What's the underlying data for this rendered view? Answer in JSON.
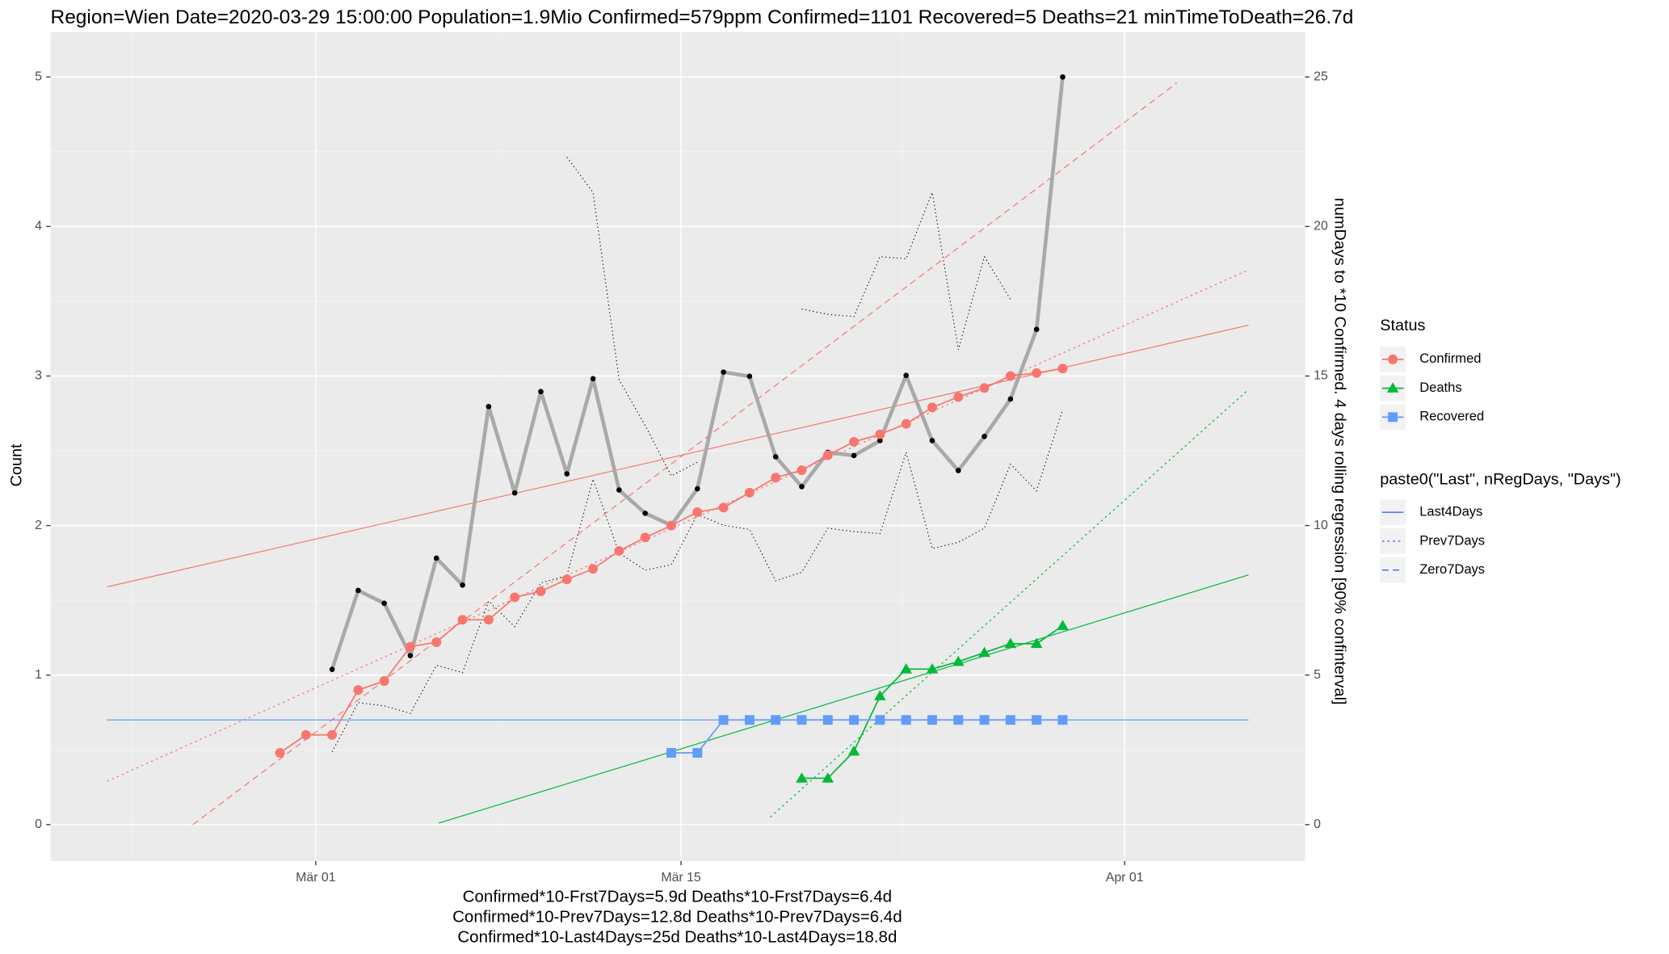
{
  "chart_data": {
    "type": "line",
    "title": "Region=Wien Date=2020-03-29 15:00:00  Population=1.9Mio Confirmed=579ppm  Confirmed=1101  Recovered=5 Deaths=21  minTimeToDeath=26.7d",
    "ylabel": "Count",
    "y2label": "numDays to *10 Confirmed. 4 days rolling regression [90% confinterval]",
    "annotations": [
      "Confirmed*10-Frst7Days=5.9d  Deaths*10-Frst7Days=6.4d",
      "Confirmed*10-Prev7Days=12.8d  Deaths*10-Prev7Days=6.4d",
      "Confirmed*10-Last4Days=25d  Deaths*10-Last4Days=18.8d"
    ],
    "grid": true,
    "xlim": [
      "2020-02-19T20:00",
      "2020-04-07T22:00"
    ],
    "xticks": [
      {
        "value": "2020-03-01",
        "label": "Mär 01"
      },
      {
        "value": "2020-03-15",
        "label": "Mär 15"
      },
      {
        "value": "2020-04-01",
        "label": "Apr 01"
      }
    ],
    "ylim": [
      -0.243,
      5.3
    ],
    "yticks": [
      0,
      1,
      2,
      3,
      4,
      5
    ],
    "y2lim": [
      -1.215,
      26.5
    ],
    "y2ticks": [
      0,
      5,
      10,
      15,
      20,
      25
    ],
    "x": [
      "2020-02-28T15:00",
      "2020-02-29T15:00",
      "2020-03-01T15:00",
      "2020-03-02T15:00",
      "2020-03-03T15:00",
      "2020-03-04T15:00",
      "2020-03-05T15:00",
      "2020-03-06T15:00",
      "2020-03-07T15:00",
      "2020-03-08T15:00",
      "2020-03-09T15:00",
      "2020-03-10T15:00",
      "2020-03-11T15:00",
      "2020-03-12T15:00",
      "2020-03-13T15:00",
      "2020-03-14T15:00",
      "2020-03-15T15:00",
      "2020-03-16T15:00",
      "2020-03-17T15:00",
      "2020-03-18T15:00",
      "2020-03-19T15:00",
      "2020-03-20T15:00",
      "2020-03-21T15:00",
      "2020-03-22T15:00",
      "2020-03-23T15:00",
      "2020-03-24T15:00",
      "2020-03-25T15:00",
      "2020-03-26T15:00",
      "2020-03-27T15:00",
      "2020-03-28T15:00",
      "2020-03-29T15:00"
    ],
    "legend_title": "Status",
    "series": [
      {
        "name": "Confirmed",
        "color": "#F8766D",
        "marker": "circle",
        "values": [
          0.48,
          0.6,
          0.6,
          0.9,
          0.96,
          1.19,
          1.22,
          1.37,
          1.37,
          1.52,
          1.56,
          1.64,
          1.71,
          1.83,
          1.92,
          2.0,
          2.09,
          2.12,
          2.22,
          2.32,
          2.37,
          2.47,
          2.56,
          2.61,
          2.68,
          2.79,
          2.86,
          2.92,
          3.0,
          3.02,
          3.05
        ]
      },
      {
        "name": "Deaths",
        "color": "#00BA38",
        "marker": "triangle",
        "values": [
          null,
          null,
          null,
          null,
          null,
          null,
          null,
          null,
          null,
          null,
          null,
          null,
          null,
          null,
          null,
          null,
          null,
          null,
          null,
          null,
          0.31,
          0.31,
          0.49,
          0.86,
          1.04,
          1.04,
          1.09,
          1.15,
          1.21,
          1.21,
          1.33
        ]
      },
      {
        "name": "Recovered",
        "color": "#619CFF",
        "marker": "square",
        "values": [
          null,
          null,
          null,
          null,
          null,
          null,
          null,
          null,
          null,
          null,
          null,
          null,
          null,
          null,
          null,
          0.48,
          0.48,
          0.7,
          0.7,
          0.7,
          0.7,
          0.7,
          0.7,
          0.7,
          0.7,
          0.7,
          0.7,
          0.7,
          0.7,
          0.7,
          0.7
        ]
      }
    ],
    "num_days": {
      "axis": "y2",
      "color": "#A9A9A9",
      "band_color": "#000000",
      "values": [
        null,
        null,
        5.19,
        7.83,
        7.4,
        5.65,
        8.91,
        8.01,
        13.98,
        11.09,
        14.48,
        11.73,
        14.91,
        11.19,
        10.41,
        10.01,
        11.23,
        15.13,
        14.99,
        12.3,
        11.3,
        12.45,
        12.34,
        12.84,
        15.02,
        12.84,
        11.84,
        12.98,
        14.23,
        16.56,
        25.0
      ],
      "lower": [
        null,
        null,
        2.43,
        4.08,
        3.97,
        3.72,
        5.33,
        5.08,
        7.47,
        6.62,
        8.08,
        8.33,
        11.55,
        9.08,
        8.51,
        8.69,
        10.37,
        10.01,
        9.87,
        8.15,
        8.44,
        9.91,
        9.8,
        9.73,
        12.45,
        9.23,
        9.44,
        9.91,
        12.05,
        11.16,
        13.88
      ],
      "upper": [
        null,
        null,
        null,
        null,
        null,
        null,
        null,
        null,
        null,
        null,
        null,
        22.32,
        21.14,
        14.88,
        13.34,
        11.66,
        12.12,
        null,
        null,
        null,
        17.24,
        17.06,
        16.99,
        18.99,
        18.92,
        21.14,
        15.88,
        18.99,
        17.56,
        null,
        null
      ]
    },
    "linetype_legend": {
      "title": "paste0(\"Last\", nRegDays, \"Days\")",
      "color": "#3366FF",
      "entries": [
        "Last4Days",
        "Prev7Days",
        "Zero7Days"
      ]
    },
    "fits": [
      {
        "series": "Confirmed",
        "linetype": "Last4Days",
        "x": [
          "2020-02-22T00:00",
          "2020-04-05T18:00"
        ],
        "values": [
          1.59,
          3.34
        ]
      },
      {
        "series": "Confirmed",
        "linetype": "Prev7Days",
        "x": [
          "2020-02-22T00:00",
          "2020-04-05T18:00"
        ],
        "values": [
          0.29,
          3.71
        ]
      },
      {
        "series": "Confirmed",
        "linetype": "Zero7Days",
        "x": [
          "2020-02-25T07:00",
          "2020-04-03T00:00"
        ],
        "values": [
          0,
          4.96
        ]
      },
      {
        "series": "Deaths",
        "linetype": "Last4Days",
        "x": [
          "2020-03-05T17:00",
          "2020-04-05T18:00"
        ],
        "values": [
          0.01,
          1.67
        ]
      },
      {
        "series": "Deaths",
        "linetype": "Prev7Days",
        "x": [
          "2020-03-18T10:00",
          "2020-04-05T18:00"
        ],
        "values": [
          0.05,
          2.91
        ]
      },
      {
        "series": "Recovered",
        "linetype": "Last4Days",
        "x": [
          "2020-02-22T00:00",
          "2020-04-05T18:00"
        ],
        "values": [
          0.7,
          0.7
        ]
      }
    ]
  }
}
